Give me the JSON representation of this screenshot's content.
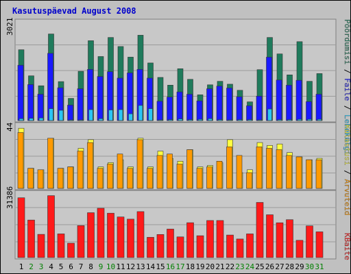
{
  "chart_data": [
    {
      "type": "bar",
      "title": "Kasutuspäevad August 2008",
      "categories": [
        "1",
        "2",
        "3",
        "4",
        "5",
        "6",
        "7",
        "8",
        "9",
        "10",
        "11",
        "12",
        "13",
        "14",
        "15",
        "16",
        "17",
        "18",
        "19",
        "20",
        "21",
        "22",
        "23",
        "24",
        "25",
        "26",
        "27",
        "28",
        "29",
        "30",
        "31"
      ],
      "weekend_days": [
        "2",
        "3",
        "9",
        "10",
        "16",
        "17",
        "23",
        "24",
        "30",
        "31"
      ],
      "ymax_label": "3021",
      "ylim": [
        0,
        3021
      ],
      "series": [
        {
          "name": "Pöördumisi",
          "color": "#1f7b5c",
          "values": [
            2200,
            1390,
            1080,
            2690,
            1210,
            690,
            1530,
            2480,
            1990,
            2580,
            2300,
            1970,
            2650,
            1790,
            1340,
            1100,
            1610,
            1280,
            800,
            1110,
            1220,
            1130,
            940,
            580,
            1580,
            2580,
            2070,
            1420,
            2450,
            1220,
            1460
          ]
        },
        {
          "name": "Faile",
          "color": "#1a1aff",
          "values": [
            1720,
            1120,
            820,
            2090,
            1020,
            480,
            990,
            1590,
            1370,
            1520,
            1320,
            1480,
            1590,
            1320,
            600,
            730,
            890,
            820,
            610,
            990,
            1070,
            1010,
            740,
            460,
            760,
            1970,
            1260,
            1100,
            1250,
            590,
            820
          ]
        },
        {
          "name": "Lehekülgi",
          "color": "#29c5f5",
          "values": [
            60,
            70,
            80,
            370,
            320,
            20,
            20,
            340,
            60,
            330,
            340,
            210,
            470,
            370,
            20,
            30,
            50,
            30,
            40,
            60,
            30,
            20,
            30,
            30,
            20,
            360,
            30,
            30,
            40,
            40,
            40
          ]
        }
      ]
    },
    {
      "type": "bar",
      "ymax_label": "44",
      "ylim": [
        0,
        44
      ],
      "series": [
        {
          "name": "Külastusi",
          "color": "#ffff40",
          "values": [
            42,
            14,
            13,
            35,
            14,
            15,
            28,
            34,
            15,
            18,
            20,
            15,
            35,
            15,
            26,
            21,
            19,
            27,
            15,
            16,
            18,
            34,
            11,
            13,
            32,
            30,
            31,
            25,
            22,
            20,
            21
          ]
        },
        {
          "name": "Arvuteid",
          "color": "#ff9a00",
          "values": [
            39,
            14,
            13,
            35,
            14,
            15,
            26,
            32,
            14,
            17,
            24,
            14,
            34,
            14,
            23,
            24,
            17,
            27,
            14,
            15,
            19,
            29,
            23,
            11,
            29,
            28,
            27,
            23,
            22,
            20,
            20
          ]
        }
      ]
    },
    {
      "type": "bar",
      "ymax_label": "31386",
      "ylim": [
        0,
        31386
      ],
      "series": [
        {
          "name": "KBaite",
          "color": "#ff1a1a",
          "values": [
            29770,
            18680,
            11560,
            30830,
            11800,
            7170,
            15930,
            22330,
            24550,
            22110,
            20240,
            19130,
            22890,
            10100,
            11500,
            14180,
            10310,
            17380,
            10890,
            18440,
            18450,
            11220,
            9260,
            11810,
            27450,
            21320,
            17330,
            18860,
            8590,
            15800,
            12840
          ]
        }
      ]
    }
  ]
}
